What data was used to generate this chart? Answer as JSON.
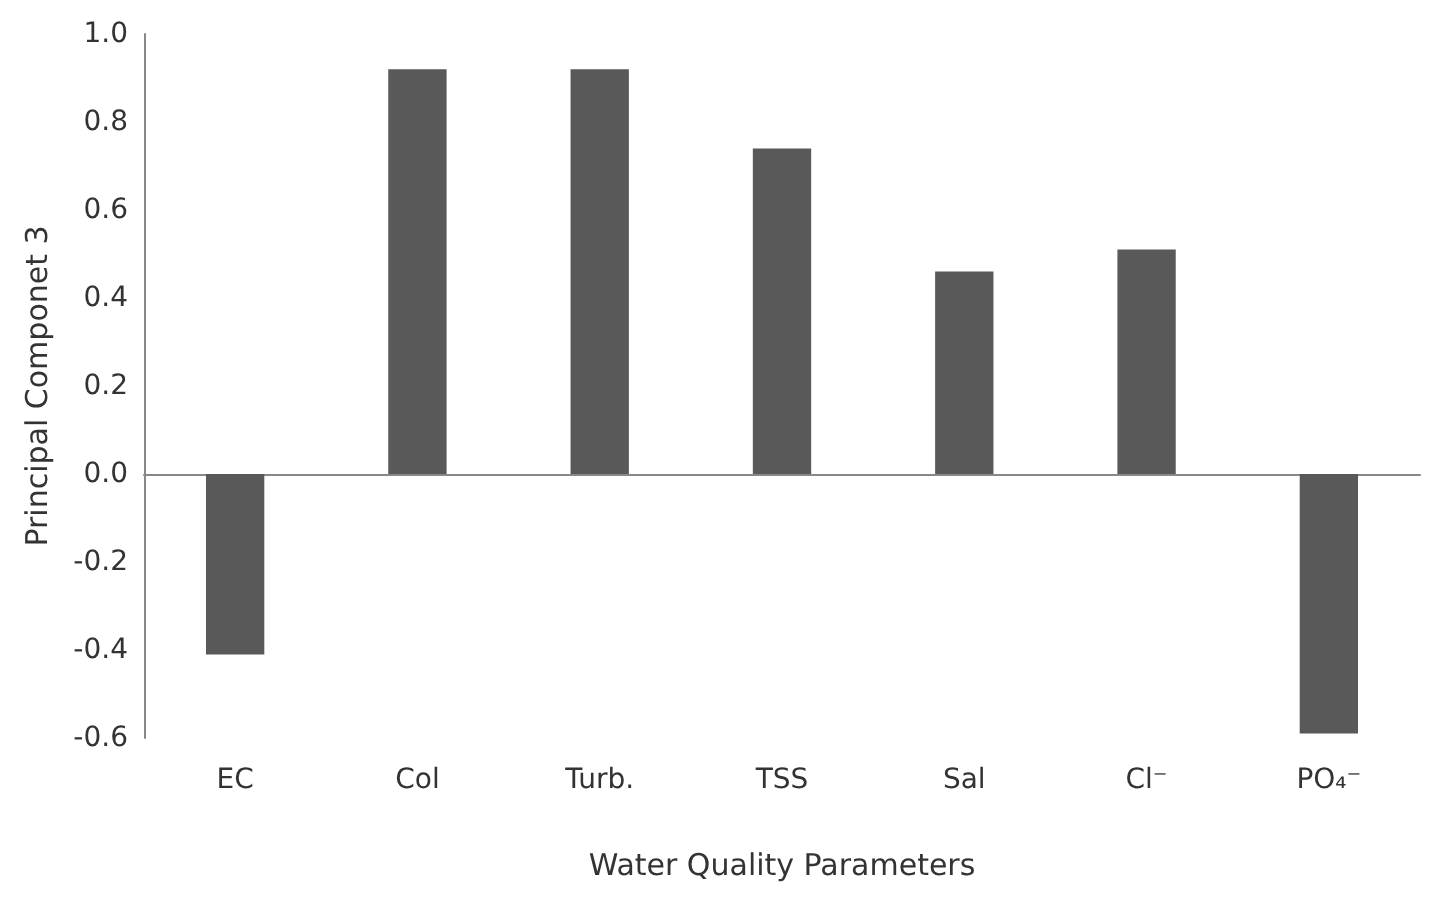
{
  "chart_data": {
    "type": "bar",
    "xlabel": "Water Quality Parameters",
    "ylabel": "Principal Componet 3",
    "categories": [
      "EC",
      "Col",
      "Turb.",
      "TSS",
      "Sal",
      "Cl⁻",
      "PO₄⁻"
    ],
    "values": [
      -0.41,
      0.92,
      0.92,
      0.74,
      0.46,
      0.51,
      -0.59
    ],
    "color": "#595959",
    "ylim": [
      -0.6,
      1.0
    ],
    "yticks": [
      -0.6,
      -0.4,
      -0.2,
      {
        "value": 0,
        "label": "0.0"
      },
      0.2,
      0.4,
      0.6,
      0.8,
      {
        "value": 1,
        "label": "1.0"
      }
    ]
  }
}
